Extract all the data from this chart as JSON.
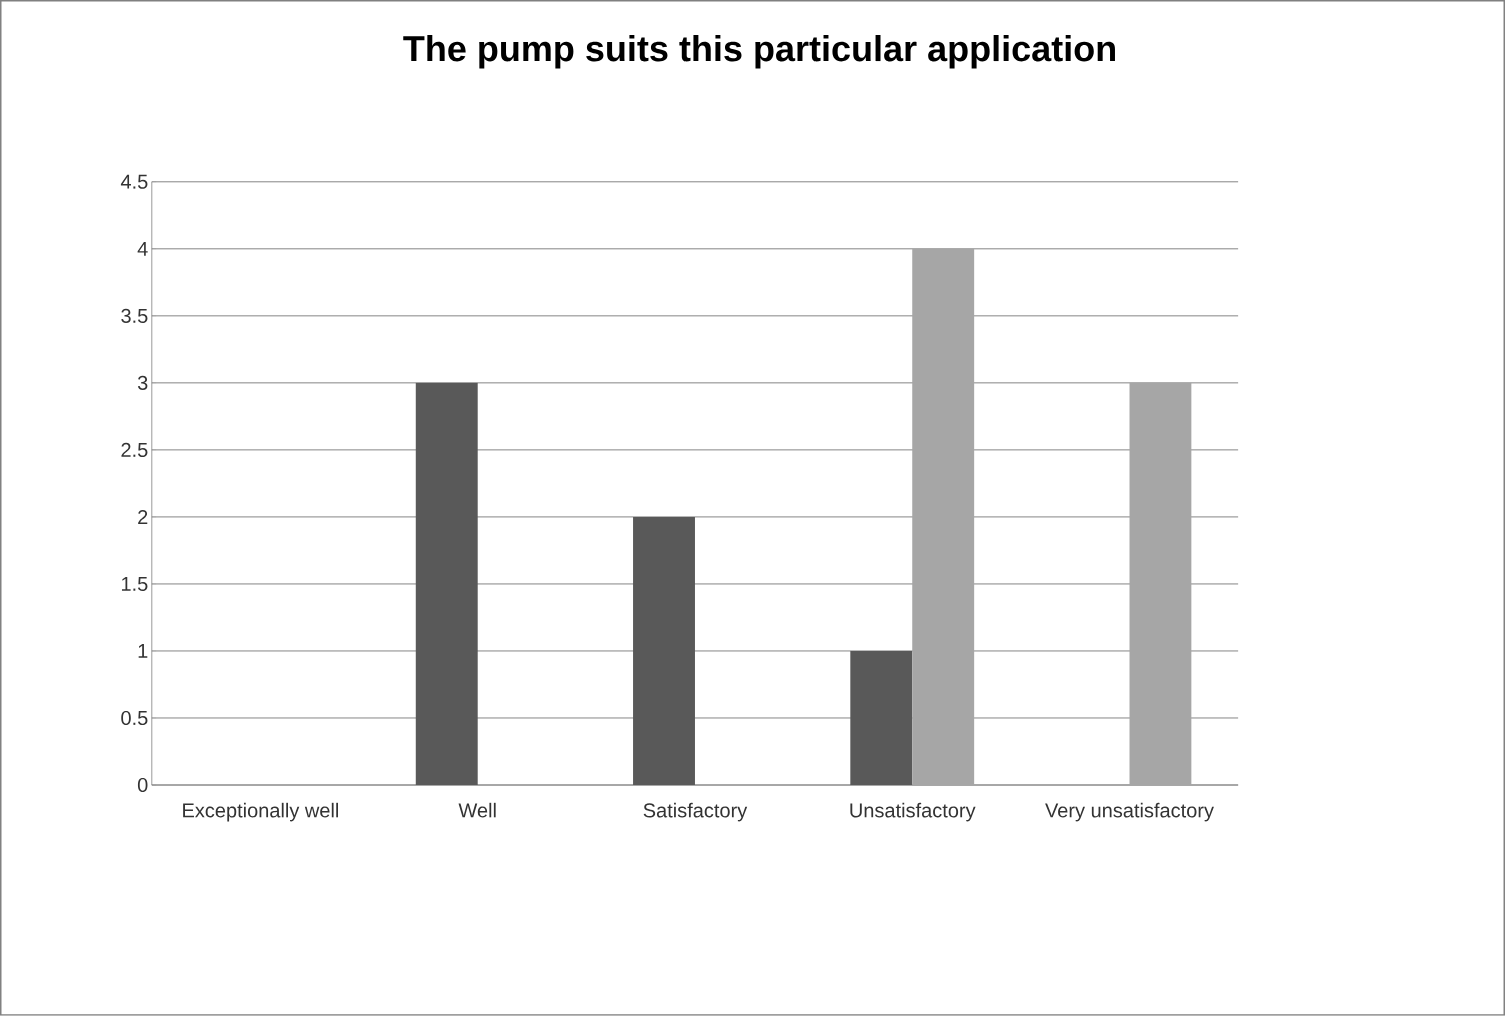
{
  "chart_data": {
    "type": "bar",
    "title": "The pump suits this particular application",
    "categories": [
      "Exceptionally well",
      "Well",
      "Satisfactory",
      "Unsatisfactory",
      "Very unsatisfactory"
    ],
    "series": [
      {
        "color": "#595959",
        "values": [
          0,
          3,
          2,
          1,
          0
        ]
      },
      {
        "color": "#a6a6a6",
        "values": [
          0,
          0,
          0,
          4,
          3
        ]
      }
    ],
    "ylim": [
      0,
      4.5
    ],
    "yticks": [
      0,
      0.5,
      1,
      1.5,
      2,
      2.5,
      3,
      3.5,
      4,
      4.5
    ],
    "grid": "y"
  }
}
